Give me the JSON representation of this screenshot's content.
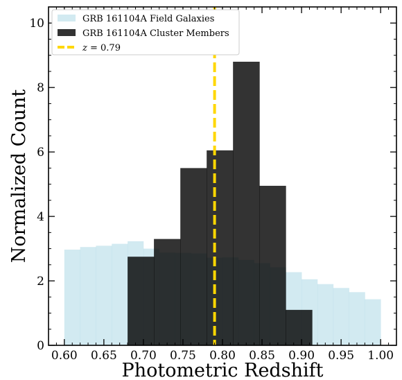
{
  "chart_data": {
    "type": "bar",
    "xlabel": "Photometric Redshift",
    "ylabel": "Normalized Count",
    "xlim": [
      0.58,
      1.02
    ],
    "ylim": [
      0,
      10.5
    ],
    "xticks": [
      0.6,
      0.65,
      0.7,
      0.75,
      0.8,
      0.85,
      0.9,
      0.95,
      1.0
    ],
    "xtick_labels": [
      "0.60",
      "0.65",
      "0.70",
      "0.75",
      "0.80",
      "0.85",
      "0.90",
      "0.95",
      "1.00"
    ],
    "yticks": [
      0,
      2,
      4,
      6,
      8,
      10
    ],
    "ytick_labels": [
      "0",
      "2",
      "4",
      "6",
      "8",
      "10"
    ],
    "legend_position": "top-left",
    "series": [
      {
        "name": "GRB 161104A Field Galaxies",
        "color": "#add8e6",
        "opacity": 0.55,
        "bin_edges": [
          0.6,
          0.62,
          0.64,
          0.66,
          0.68,
          0.7,
          0.72,
          0.74,
          0.76,
          0.78,
          0.8,
          0.82,
          0.84,
          0.86,
          0.88,
          0.9,
          0.92,
          0.94,
          0.96,
          0.98,
          1.0
        ],
        "values": [
          2.97,
          3.05,
          3.09,
          3.15,
          3.23,
          3.0,
          2.88,
          2.87,
          2.85,
          2.72,
          2.73,
          2.65,
          2.55,
          2.42,
          2.27,
          2.05,
          1.9,
          1.78,
          1.65,
          1.43
        ]
      },
      {
        "name": "GRB 161104A Cluster Members",
        "color": "#000000",
        "opacity": 0.8,
        "bin_edges": [
          0.68,
          0.7133,
          0.7467,
          0.78,
          0.8133,
          0.8467,
          0.88,
          0.9133
        ],
        "values": [
          2.75,
          3.3,
          5.5,
          6.05,
          8.8,
          4.95,
          1.1
        ],
        "bin_edges_note": ""
      }
    ],
    "reference_line": {
      "label": "z = 0.79",
      "label_prefix": "z",
      "label_suffix": " = 0.79",
      "x": 0.79,
      "color": "#ffd700",
      "style": "dashed"
    }
  }
}
